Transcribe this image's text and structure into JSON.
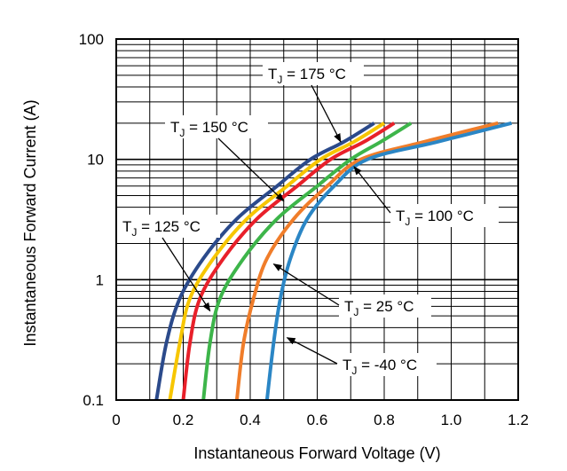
{
  "chart_data": {
    "type": "line",
    "xlabel": "Instantaneous Forward Voltage (V)",
    "ylabel": "Instantaneous Forward Current (A)",
    "xlim": [
      0,
      1.2
    ],
    "ylim": [
      0.1,
      100
    ],
    "yscale": "log",
    "grid": true,
    "x_ticks": [
      "0",
      "0.2",
      "0.4",
      "0.6",
      "0.8",
      "1.0",
      "1.2"
    ],
    "y_ticks": [
      "0.1",
      "1",
      "10",
      "100"
    ],
    "series": [
      {
        "name": "T_J = 175 °C",
        "color": "#2b4a8b",
        "points": [
          [
            0.12,
            0.1
          ],
          [
            0.15,
            0.3
          ],
          [
            0.19,
            0.7
          ],
          [
            0.26,
            1.5
          ],
          [
            0.36,
            3.2
          ],
          [
            0.48,
            6.0
          ],
          [
            0.58,
            10
          ],
          [
            0.68,
            14
          ],
          [
            0.77,
            20
          ]
        ]
      },
      {
        "name": "T_J = 150 °C",
        "color": "#f7c600",
        "points": [
          [
            0.16,
            0.1
          ],
          [
            0.19,
            0.3
          ],
          [
            0.22,
            0.7
          ],
          [
            0.29,
            1.5
          ],
          [
            0.39,
            3.2
          ],
          [
            0.51,
            6.0
          ],
          [
            0.61,
            10
          ],
          [
            0.71,
            14
          ],
          [
            0.8,
            20
          ]
        ]
      },
      {
        "name": "T_J = 125 °C",
        "color": "#e8202a",
        "points": [
          [
            0.2,
            0.1
          ],
          [
            0.22,
            0.3
          ],
          [
            0.25,
            0.7
          ],
          [
            0.32,
            1.5
          ],
          [
            0.42,
            3.2
          ],
          [
            0.54,
            6.0
          ],
          [
            0.64,
            10
          ],
          [
            0.74,
            14
          ],
          [
            0.83,
            20
          ]
        ]
      },
      {
        "name": "T_J = 100 °C",
        "color": "#3db54a",
        "points": [
          [
            0.26,
            0.1
          ],
          [
            0.28,
            0.3
          ],
          [
            0.31,
            0.7
          ],
          [
            0.38,
            1.5
          ],
          [
            0.48,
            3.2
          ],
          [
            0.6,
            6.0
          ],
          [
            0.7,
            10
          ],
          [
            0.79,
            14
          ],
          [
            0.88,
            20
          ]
        ]
      },
      {
        "name": "T_J = 25 °C",
        "color": "#f07d2a",
        "points": [
          [
            0.36,
            0.1
          ],
          [
            0.38,
            0.3
          ],
          [
            0.41,
            0.7
          ],
          [
            0.45,
            1.5
          ],
          [
            0.53,
            3.2
          ],
          [
            0.63,
            6.0
          ],
          [
            0.73,
            10
          ],
          [
            0.92,
            14
          ],
          [
            1.14,
            20
          ]
        ]
      },
      {
        "name": "T_J = -40 °C",
        "color": "#2b86c5",
        "points": [
          [
            0.45,
            0.1
          ],
          [
            0.47,
            0.3
          ],
          [
            0.49,
            0.7
          ],
          [
            0.52,
            1.5
          ],
          [
            0.57,
            3.2
          ],
          [
            0.65,
            6.0
          ],
          [
            0.75,
            10
          ],
          [
            0.96,
            14
          ],
          [
            1.18,
            20
          ]
        ]
      }
    ],
    "annotations": [
      {
        "main": "T",
        "sub": "J",
        "rest": " = 175 °C",
        "target": [
          0.67,
          14
        ]
      },
      {
        "main": "T",
        "sub": "J",
        "rest": " = 150 °C",
        "target": [
          0.5,
          4.5
        ]
      },
      {
        "main": "T",
        "sub": "J",
        "rest": " = 125 °C",
        "target": [
          0.28,
          0.55
        ]
      },
      {
        "main": "T",
        "sub": "J",
        "rest": " = 100 °C",
        "target": [
          0.71,
          8.7
        ]
      },
      {
        "main": "T",
        "sub": "J",
        "rest": " = 25 °C",
        "target": [
          0.47,
          1.35
        ]
      },
      {
        "main": "T",
        "sub": "J",
        "rest": " = -40 °C",
        "target": [
          0.51,
          0.33
        ]
      }
    ]
  }
}
